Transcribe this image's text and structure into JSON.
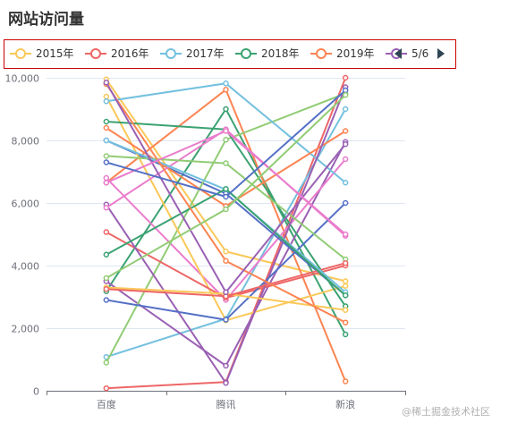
{
  "chart_data": {
    "type": "line",
    "title": "网站访问量",
    "categories": [
      "百度",
      "腾讯",
      "新浪"
    ],
    "ylim": [
      0,
      10000
    ],
    "yticks": [
      0,
      2000,
      4000,
      6000,
      8000,
      10000
    ],
    "ytick_labels": [
      "0",
      "2,000",
      "4,000",
      "6,000",
      "8,000",
      "10,000"
    ],
    "grid": true,
    "legend": {
      "placement": "top",
      "page": "5/6",
      "prev_icon": "triangle-left-icon",
      "next_icon": "triangle-right-icon",
      "visible_items": [
        {
          "name": "2015年",
          "color": "#fac858"
        },
        {
          "name": "2016年",
          "color": "#ee6666"
        },
        {
          "name": "2017年",
          "color": "#73c0de"
        },
        {
          "name": "2018年",
          "color": "#3ba272"
        },
        {
          "name": "2019年",
          "color": "#fc8452"
        },
        {
          "name": "",
          "color": "#9a60b4"
        }
      ]
    },
    "series": [
      {
        "name": "2015年",
        "color": "#fac858",
        "values": [
          9950,
          4450,
          3500
        ]
      },
      {
        "name": "2016年",
        "color": "#ee6666",
        "values": [
          80,
          280,
          10000
        ]
      },
      {
        "name": "2017年",
        "color": "#73c0de",
        "values": [
          1080,
          2300,
          9000
        ]
      },
      {
        "name": "2018年",
        "color": "#3ba272",
        "values": [
          3180,
          9000,
          1800
        ]
      },
      {
        "name": "2019年",
        "color": "#fc8452",
        "values": [
          6650,
          9620,
          300
        ]
      },
      {
        "color": "#9a60b4",
        "values": [
          3500,
          800,
          7950
        ]
      },
      {
        "color": "#ea7ccc",
        "values": [
          6800,
          2900,
          7400
        ]
      },
      {
        "color": "#5470c6",
        "values": [
          8000,
          6300,
          3050
        ]
      },
      {
        "color": "#91cc75",
        "values": [
          900,
          8020,
          9500
        ]
      },
      {
        "color": "#fac858",
        "values": [
          9400,
          2250,
          3350
        ]
      },
      {
        "color": "#ee6666",
        "values": [
          5070,
          2970,
          4000
        ]
      },
      {
        "color": "#73c0de",
        "values": [
          9250,
          9820,
          6650
        ]
      },
      {
        "color": "#3ba272",
        "values": [
          8600,
          8350,
          2700
        ]
      },
      {
        "color": "#fc8452",
        "values": [
          8400,
          5900,
          8300
        ]
      },
      {
        "color": "#9a60b4",
        "values": [
          5950,
          250,
          9700
        ]
      },
      {
        "color": "#ea7ccc",
        "values": [
          5850,
          8350,
          4950
        ]
      },
      {
        "color": "#5470c6",
        "values": [
          2900,
          2270,
          6000
        ]
      },
      {
        "color": "#91cc75",
        "values": [
          7500,
          7270,
          4200
        ]
      },
      {
        "color": "#fac858",
        "values": [
          3300,
          3100,
          2580
        ]
      },
      {
        "color": "#ee6666",
        "values": [
          3250,
          3020,
          4080
        ]
      },
      {
        "color": "#73c0de",
        "values": [
          8000,
          6430,
          3150
        ]
      },
      {
        "color": "#3ba272",
        "values": [
          4350,
          6450,
          3050
        ]
      },
      {
        "color": "#fc8452",
        "values": [
          9800,
          4150,
          2180
        ]
      },
      {
        "color": "#9a60b4",
        "values": [
          9850,
          3150,
          7880
        ]
      },
      {
        "color": "#ea7ccc",
        "values": [
          6650,
          8300,
          5000
        ]
      },
      {
        "color": "#5470c6",
        "values": [
          7300,
          6200,
          9600
        ]
      },
      {
        "color": "#91cc75",
        "values": [
          3600,
          5800,
          9450
        ]
      }
    ]
  },
  "watermark": "@稀土掘金技术社区"
}
